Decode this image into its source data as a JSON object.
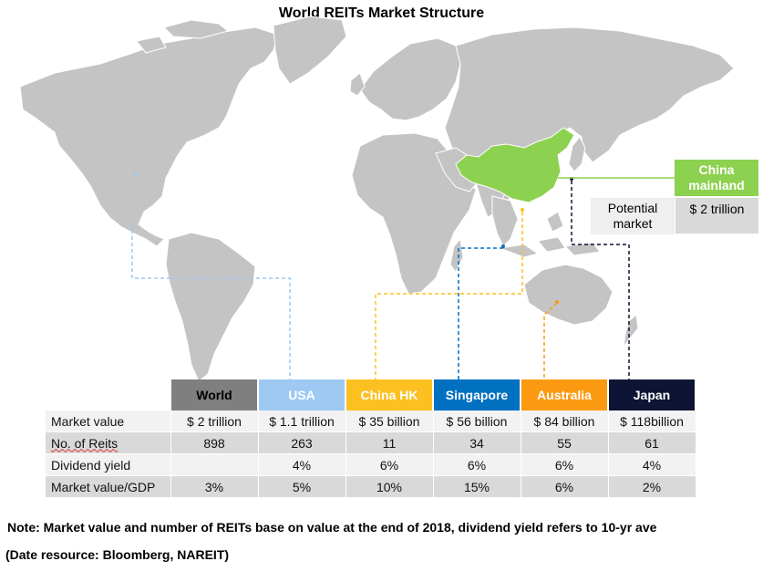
{
  "title": "World REITs Market Structure",
  "china_callout": {
    "header": "China mainland",
    "row_label": "Potential market",
    "row_value": "$ 2 trillion",
    "header_color": "#8dd150"
  },
  "table": {
    "columns": [
      {
        "name": "World",
        "color": "#7f7f7f",
        "text_color": "#000000"
      },
      {
        "name": "USA",
        "color": "#9dc9f2",
        "text_color": "#ffffff"
      },
      {
        "name": "China HK",
        "color": "#fcc020",
        "text_color": "#ffffff"
      },
      {
        "name": "Singapore",
        "color": "#0070c0",
        "text_color": "#ffffff"
      },
      {
        "name": "Australia",
        "color": "#fb9a10",
        "text_color": "#ffffff"
      },
      {
        "name": "Japan",
        "color": "#0d1434",
        "text_color": "#ffffff"
      }
    ],
    "rows": [
      {
        "label": "Market value",
        "values": [
          "$ 2 trillion",
          "$ 1.1 trillion",
          "$ 35 billion",
          "$ 56 billion",
          "$ 84 billion",
          "$ 118billion"
        ]
      },
      {
        "label": "No. of Reits",
        "values": [
          "898",
          "263",
          "11",
          "34",
          "55",
          "61"
        ]
      },
      {
        "label": "Dividend yield",
        "values": [
          "",
          "4%",
          "6%",
          "6%",
          "6%",
          "4%"
        ]
      },
      {
        "label": "Market value/GDP",
        "values": [
          "3%",
          "5%",
          "10%",
          "15%",
          "6%",
          "2%"
        ]
      }
    ]
  },
  "note": "Note: Market value and number of REITs base on value at the end of 2018, dividend yield refers to 10-yr ave",
  "source": "(Date resource: Bloomberg, NAREIT)",
  "colors": {
    "land": "#c4c4c4",
    "land_border": "#ffffff",
    "china": "#8dd150",
    "connector_usa": "#9dc9f2",
    "connector_hk": "#fcc020",
    "connector_singapore": "#0070c0",
    "connector_australia": "#fb9a10",
    "connector_japan": "#0d1434"
  }
}
